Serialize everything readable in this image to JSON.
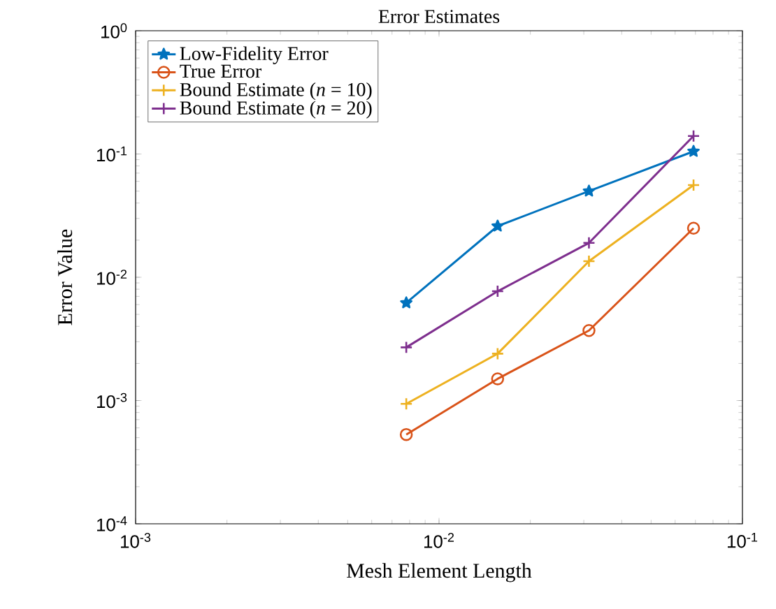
{
  "chart_data": {
    "type": "line",
    "title": "Error Estimates",
    "xlabel": "Mesh Element Length",
    "ylabel": "Error Value",
    "log": "xy",
    "grid": false,
    "legend": "top left",
    "line_style": "solid",
    "x": [
      0.0078,
      0.0156,
      0.0312,
      0.069
    ],
    "xlim": [
      0.001,
      0.1
    ],
    "xticks": [
      {
        "value": 0.001,
        "label": "10$^{-3}$"
      },
      {
        "value": 0.01,
        "label": "10$^{-2}$"
      },
      {
        "value": 0.1,
        "label": "10$^{-1}$"
      }
    ],
    "ylim": [
      0.0001,
      1
    ],
    "yticks": [
      {
        "value": 0.0001,
        "label": "10$^{-4}$"
      },
      {
        "value": 0.001,
        "label": "10$^{-3}$"
      },
      {
        "value": 0.01,
        "label": "10$^{-2}$"
      },
      {
        "value": 0.1,
        "label": "10$^{-1}$"
      },
      {
        "value": 1,
        "label": "10$^{0}$"
      }
    ],
    "series": [
      {
        "name": "Low-Fidelity Error",
        "color": "#0072bd",
        "marker": "star",
        "values": [
          0.0062,
          0.026,
          0.05,
          0.105
        ]
      },
      {
        "name": "True Error",
        "color": "#d95319",
        "marker": "circle",
        "values": [
          0.00053,
          0.0015,
          0.0037,
          0.025
        ]
      },
      {
        "name": "Bound Estimate (*n* = 10)",
        "color": "#edb120",
        "marker": "cross",
        "values": [
          0.00094,
          0.0024,
          0.0135,
          0.056
        ]
      },
      {
        "name": "Bound Estimate (*n* = 20)",
        "color": "#7e2f8e",
        "marker": "cross",
        "values": [
          0.0027,
          0.0077,
          0.019,
          0.14
        ]
      }
    ]
  }
}
